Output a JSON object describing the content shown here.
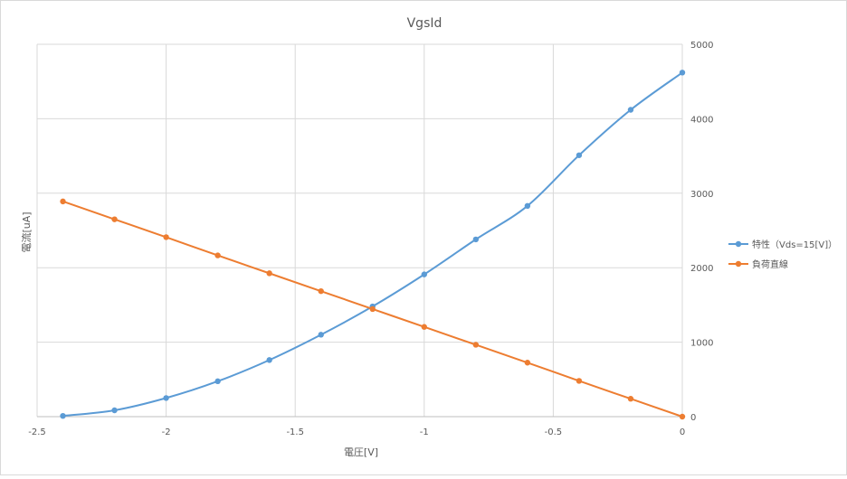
{
  "chart_data": {
    "type": "line",
    "title": "VgsId",
    "xlabel": "電圧[V]",
    "ylabel": "電流[uA]",
    "xlim": [
      -2.5,
      0
    ],
    "ylim": [
      0,
      5000
    ],
    "x_ticks": [
      -2.5,
      -2,
      -1.5,
      -1,
      -0.5,
      0
    ],
    "y_ticks": [
      0,
      1000,
      2000,
      3000,
      4000,
      5000
    ],
    "grid": true,
    "legend_position": "right",
    "series": [
      {
        "name": "特性（Vds=15[V]）",
        "color": "#5b9bd5",
        "x": [
          -2.4,
          -2.2,
          -2.0,
          -1.8,
          -1.6,
          -1.4,
          -1.2,
          -1.0,
          -0.8,
          -0.6,
          -0.4,
          -0.2,
          0
        ],
        "values": [
          10,
          85,
          250,
          475,
          760,
          1100,
          1480,
          1910,
          2380,
          2830,
          3510,
          4120,
          4620
        ]
      },
      {
        "name": "負荷直線",
        "color": "#ed7d31",
        "x": [
          -2.4,
          -2.2,
          -2.0,
          -1.8,
          -1.6,
          -1.4,
          -1.2,
          -1.0,
          -0.8,
          -0.6,
          -0.4,
          -0.2,
          0
        ],
        "values": [
          2890,
          2650,
          2410,
          2165,
          1925,
          1685,
          1445,
          1205,
          965,
          725,
          480,
          240,
          0
        ]
      }
    ]
  }
}
